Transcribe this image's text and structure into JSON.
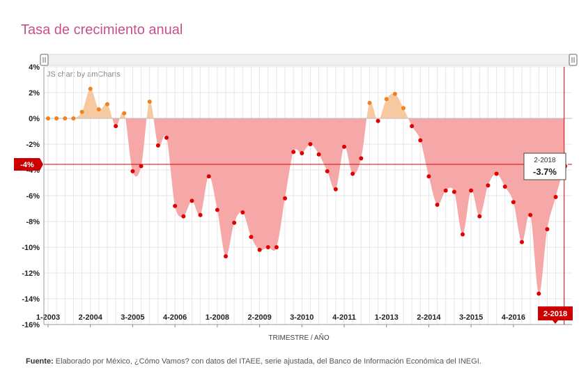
{
  "title": "Tasa de crecimiento anual",
  "credit": "JS chart by amCharts",
  "source": {
    "label": "Fuente:",
    "text": "Elaborado por México, ¿Cómo Vamos? con datos del ITAEE, serie ajustada, del Banco de Información Económica del INEGI."
  },
  "cursor": {
    "y_value_label": "-4%",
    "x_value_label": "2-2018",
    "tooltip_period": "2-2018",
    "tooltip_value": "-3.7%"
  },
  "colors": {
    "positive_fill": "#f7c9a0",
    "negative_fill": "#f6a8a8",
    "positive_bullet": "#f08020",
    "negative_bullet": "#e00000",
    "cursor": "#e00000",
    "grid": "#e6e6e6"
  },
  "chart_data": {
    "type": "area",
    "title": "Tasa de crecimiento anual",
    "xlabel": "TRIMESTRE / AÑO",
    "ylabel": "",
    "ylim": [
      -16,
      4
    ],
    "yticks": [
      "4%",
      "2%",
      "0%",
      "-2%",
      "-4%",
      "-6%",
      "-8%",
      "-10%",
      "-12%",
      "-14%",
      "-16%"
    ],
    "xtick_labels": [
      "1-2003",
      "2-2004",
      "3-2005",
      "4-2006",
      "1-2008",
      "2-2009",
      "3-2010",
      "4-2011",
      "1-2013",
      "2-2014",
      "3-2015",
      "4-2016"
    ],
    "grid": true,
    "x": [
      "1-2003",
      "2-2003",
      "3-2003",
      "4-2003",
      "1-2004",
      "2-2004",
      "3-2004",
      "4-2004",
      "1-2005",
      "2-2005",
      "3-2005",
      "4-2005",
      "1-2006",
      "2-2006",
      "3-2006",
      "4-2006",
      "1-2007",
      "2-2007",
      "3-2007",
      "4-2007",
      "1-2008",
      "2-2008",
      "3-2008",
      "4-2008",
      "1-2009",
      "2-2009",
      "3-2009",
      "4-2009",
      "1-2010",
      "2-2010",
      "3-2010",
      "4-2010",
      "1-2011",
      "2-2011",
      "3-2011",
      "4-2011",
      "1-2012",
      "2-2012",
      "3-2012",
      "4-2012",
      "1-2013",
      "2-2013",
      "3-2013",
      "4-2013",
      "1-2014",
      "2-2014",
      "3-2014",
      "4-2014",
      "1-2015",
      "2-2015",
      "3-2015",
      "4-2015",
      "1-2016",
      "2-2016",
      "3-2016",
      "4-2016",
      "1-2017",
      "2-2017",
      "3-2017",
      "4-2017",
      "1-2018",
      "2-2018"
    ],
    "series": [
      {
        "values": [
          0,
          0,
          0,
          0,
          0.5,
          2.3,
          0.7,
          1.1,
          -0.6,
          0.4,
          -4.1,
          -3.7,
          1.3,
          -2.1,
          -1.5,
          -6.8,
          -7.6,
          -6.4,
          -7.5,
          -4.5,
          -7.1,
          -10.7,
          -8.1,
          -7.3,
          -9.2,
          -10.2,
          -10,
          -10,
          -6.2,
          -2.6,
          -2.7,
          -2,
          -2.8,
          -4.1,
          -5.5,
          -2.2,
          -4.3,
          -3.1,
          1.2,
          -0.2,
          1.5,
          1.9,
          0.8,
          -0.6,
          -1.7,
          -4.5,
          -6.7,
          -5.6,
          -5.7,
          -9,
          -5.6,
          -7.6,
          -5.2,
          -4.3,
          -5.3,
          -6.5,
          -9.6,
          -7.5,
          -13.6,
          -8.6,
          -6.1,
          -3.7
        ]
      }
    ]
  }
}
